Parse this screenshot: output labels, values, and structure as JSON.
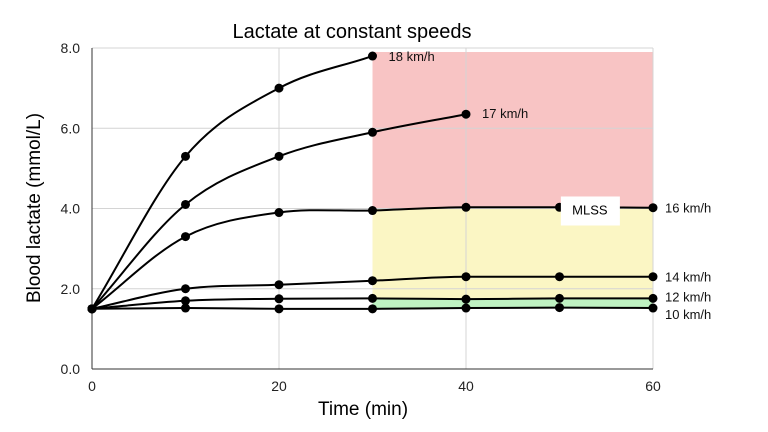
{
  "chart_data": {
    "type": "line",
    "title": "Lactate at constant speeds",
    "xlabel": "Time (min)",
    "ylabel": "Blood lactate (mmol/L)",
    "xlim": [
      0,
      60
    ],
    "ylim": [
      0,
      8
    ],
    "x_ticks": [
      "0",
      "20",
      "40",
      "60"
    ],
    "y_ticks": [
      "0.0",
      "2.0",
      "4.0",
      "6.0",
      "8.0"
    ],
    "grid": true,
    "colors": {
      "zone_above_mlss": "#f8c4c4",
      "zone_mlss": "#fbf6c4",
      "zone_low": "#bff2c2",
      "line": "#000000"
    },
    "zones": [
      {
        "x": [
          30,
          60
        ],
        "y": [
          4.0,
          7.9
        ],
        "color": "#f8c4c4"
      },
      {
        "x": [
          30,
          60
        ],
        "y": [
          1.75,
          4.0
        ],
        "color": "#fbf6c4"
      },
      {
        "x": [
          30,
          60
        ],
        "y": [
          1.52,
          1.75
        ],
        "color": "#bff2c2"
      }
    ],
    "annotation": {
      "text": "MLSS",
      "x": 52.5,
      "y": 4.0
    },
    "series": [
      {
        "name": "18 km/h",
        "x": [
          0,
          10,
          20,
          30
        ],
        "y": [
          1.5,
          5.3,
          7.0,
          7.8
        ]
      },
      {
        "name": "17 km/h",
        "x": [
          0,
          10,
          20,
          30,
          40
        ],
        "y": [
          1.5,
          4.1,
          5.3,
          5.9,
          6.35
        ]
      },
      {
        "name": "16 km/h",
        "x": [
          0,
          10,
          20,
          30,
          40,
          50,
          60
        ],
        "y": [
          1.5,
          3.3,
          3.9,
          3.95,
          4.03,
          4.03,
          4.02
        ]
      },
      {
        "name": "14 km/h",
        "x": [
          0,
          10,
          20,
          30,
          40,
          50,
          60
        ],
        "y": [
          1.5,
          2.0,
          2.1,
          2.2,
          2.3,
          2.3,
          2.3
        ]
      },
      {
        "name": "12 km/h",
        "x": [
          0,
          10,
          20,
          30,
          40,
          50,
          60
        ],
        "y": [
          1.5,
          1.7,
          1.75,
          1.76,
          1.74,
          1.76,
          1.76
        ]
      },
      {
        "name": "10 km/h",
        "x": [
          0,
          10,
          20,
          30,
          40,
          50,
          60
        ],
        "y": [
          1.5,
          1.52,
          1.5,
          1.5,
          1.52,
          1.53,
          1.52
        ]
      }
    ]
  }
}
